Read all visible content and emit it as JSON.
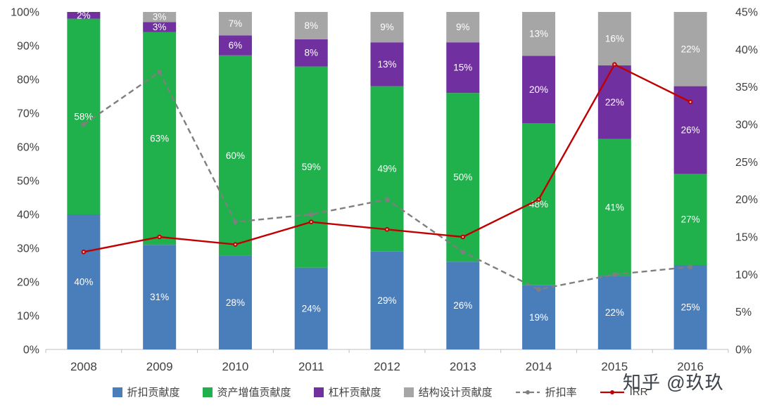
{
  "watermark": "知乎 @玖玖",
  "chart_data": {
    "type": "bar",
    "stacked": true,
    "categories": [
      "2008",
      "2009",
      "2010",
      "2011",
      "2012",
      "2013",
      "2014",
      "2015",
      "2016"
    ],
    "bar_series": [
      {
        "key": "discount",
        "name": "折扣贡献度",
        "color": "#4a7ebb",
        "values": [
          40,
          31,
          28,
          24,
          29,
          26,
          19,
          22,
          25
        ]
      },
      {
        "key": "asset-appreciation",
        "name": "资产增值贡献度",
        "color": "#21b14c",
        "values": [
          58,
          63,
          60,
          59,
          49,
          50,
          48,
          41,
          27
        ]
      },
      {
        "key": "leverage",
        "name": "杠杆贡献度",
        "color": "#7030a0",
        "values": [
          2,
          3,
          6,
          8,
          13,
          15,
          20,
          22,
          26
        ]
      },
      {
        "key": "structure-design",
        "name": "结构设计贡献度",
        "color": "#a6a6a6",
        "values": [
          0,
          3,
          7,
          8,
          9,
          9,
          13,
          16,
          22
        ]
      }
    ],
    "line_series": [
      {
        "key": "discount-rate",
        "name": "折扣率",
        "color": "#7f7f7f",
        "style": "dashed",
        "axis": "right",
        "values": [
          30,
          37,
          17,
          18,
          20,
          13,
          8,
          10,
          11
        ]
      },
      {
        "key": "irr",
        "name": "IRR",
        "color": "#c00000",
        "style": "solid",
        "axis": "right",
        "values": [
          13,
          15,
          14,
          17,
          16,
          15,
          20,
          38,
          33
        ]
      }
    ],
    "left_axis": {
      "min": 0,
      "max": 100,
      "step": 10,
      "format": "percent",
      "ticks": [
        "0%",
        "10%",
        "20%",
        "30%",
        "40%",
        "50%",
        "60%",
        "70%",
        "80%",
        "90%",
        "100%"
      ]
    },
    "right_axis": {
      "min": 0,
      "max": 45,
      "step": 5,
      "format": "percent",
      "ticks": [
        "0%",
        "5%",
        "10%",
        "15%",
        "20%",
        "25%",
        "30%",
        "35%",
        "40%",
        "45%"
      ]
    },
    "title": "",
    "xlabel": "",
    "ylabel": "",
    "show_bar_labels": true,
    "legend_position": "bottom"
  }
}
